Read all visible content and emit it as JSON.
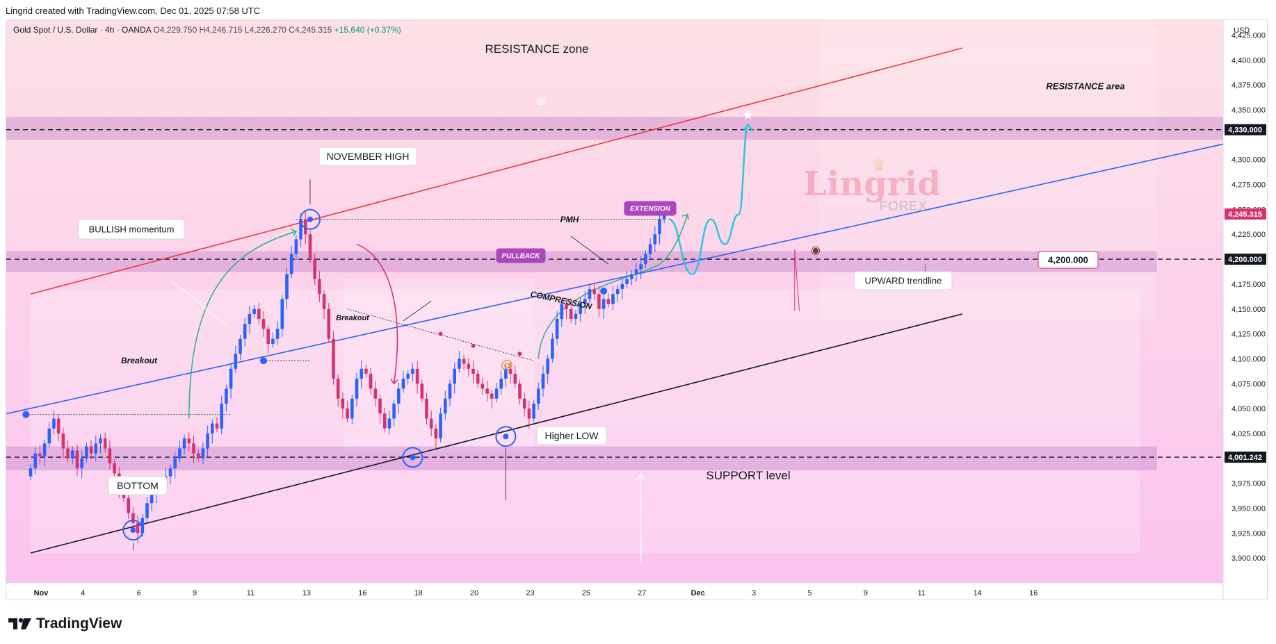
{
  "caption": "Lingrid created with TradingView.com, Dec 01, 2025 07:58 UTC",
  "symbol": {
    "name": "Gold Spot / U.S. Dollar · 4h · OANDA",
    "open": "O4,229.750",
    "high": "H4,246.715",
    "low": "L4,226.270",
    "close": "C4,245.315",
    "change": "+15.640 (+0.37%)"
  },
  "brand": {
    "name": "TradingView"
  },
  "colors": {
    "up": "#089981",
    "down": "#d6336c",
    "candle_body": "#2962ff",
    "resistance_line": "#f0383d",
    "trendline": "#2962ff",
    "support_line": "#131722",
    "projection": "#21c7e0",
    "zone": "#c887cf",
    "badge_purple": "#ab47bc"
  },
  "chart_data": {
    "type": "candlestick",
    "currency": "USD",
    "ylim": [
      3875,
      4440
    ],
    "y_ticks": [
      "3,900.000",
      "3,925.000",
      "3,950.000",
      "3,975.000",
      "4,025.000",
      "4,050.000",
      "4,075.000",
      "4,100.000",
      "4,125.000",
      "4,150.000",
      "4,175.000",
      "4,225.000",
      "4,250.000",
      "4,275.000",
      "4,300.000",
      "4,350.000",
      "4,375.000",
      "4,400.000",
      "4,425.000"
    ],
    "y_tick_values": [
      3900,
      3925,
      3950,
      3975,
      4025,
      4050,
      4075,
      4100,
      4125,
      4150,
      4175,
      4225,
      4250,
      4275,
      4300,
      4350,
      4375,
      4400,
      4425
    ],
    "price_labels": [
      {
        "text": "4,330.000",
        "value": 4330,
        "style": "dark"
      },
      {
        "text": "4,245.315",
        "value": 4245.315,
        "style": "current"
      },
      {
        "text": "4,200.000",
        "value": 4200,
        "style": "dark"
      },
      {
        "text": "4,001.242",
        "value": 4001.242,
        "style": "dark"
      }
    ],
    "x_ticks": [
      {
        "label": "Nov",
        "bar": 0
      },
      {
        "label": "4",
        "bar": 9
      },
      {
        "label": "6",
        "bar": 21
      },
      {
        "label": "9",
        "bar": 33
      },
      {
        "label": "11",
        "bar": 45
      },
      {
        "label": "13",
        "bar": 57
      },
      {
        "label": "16",
        "bar": 69
      },
      {
        "label": "18",
        "bar": 81
      },
      {
        "label": "20",
        "bar": 93
      },
      {
        "label": "23",
        "bar": 105
      },
      {
        "label": "25",
        "bar": 117
      },
      {
        "label": "27",
        "bar": 129
      },
      {
        "label": "Dec",
        "bar": 141
      },
      {
        "label": "3",
        "bar": 153
      },
      {
        "label": "5",
        "bar": 165
      },
      {
        "label": "9",
        "bar": 177
      },
      {
        "label": "11",
        "bar": 189
      },
      {
        "label": "14",
        "bar": 201
      },
      {
        "label": "16",
        "bar": 213
      }
    ],
    "closes": [
      3990,
      4005,
      4002,
      4015,
      4030,
      4040,
      4025,
      4010,
      4000,
      4008,
      3990,
      4000,
      4012,
      4005,
      4015,
      4020,
      4010,
      3995,
      3985,
      3970,
      3960,
      3945,
      3935,
      3925,
      3940,
      3955,
      3965,
      3975,
      3970,
      3982,
      3990,
      4000,
      4010,
      4020,
      4015,
      4005,
      4000,
      4010,
      4025,
      4035,
      4030,
      4055,
      4070,
      4090,
      4105,
      4120,
      4135,
      4145,
      4150,
      4140,
      4130,
      4115,
      4120,
      4130,
      4160,
      4185,
      4205,
      4220,
      4240,
      4225,
      4200,
      4180,
      4165,
      4150,
      4120,
      4080,
      4060,
      4050,
      4040,
      4060,
      4080,
      4090,
      4085,
      4070,
      4060,
      4045,
      4030,
      4040,
      4055,
      4070,
      4080,
      4085,
      4090,
      4075,
      4060,
      4040,
      4030,
      4020,
      4045,
      4060,
      4075,
      4090,
      4100,
      4095,
      4090,
      4085,
      4075,
      4070,
      4065,
      4060,
      4070,
      4080,
      4090,
      4085,
      4075,
      4060,
      4050,
      4040,
      4055,
      4070,
      4085,
      4100,
      4120,
      4140,
      4155,
      4150,
      4140,
      4145,
      4155,
      4160,
      4170,
      4165,
      4150,
      4160,
      4155,
      4165,
      4170,
      4175,
      4180,
      4185,
      4190,
      4195,
      4205,
      4215,
      4225,
      4240,
      4245.315
    ],
    "levels": [
      4330,
      4200,
      4001.242
    ],
    "zones": [
      [
        4320,
        4343
      ],
      [
        4187,
        4208
      ],
      [
        3988,
        4012
      ]
    ],
    "resistance_line": {
      "from": [
        0,
        4165
      ],
      "to": [
        200,
        4412
      ]
    },
    "trendline": {
      "from": [
        -6,
        4044
      ],
      "to": [
        213,
        4271
      ]
    },
    "support_line": {
      "from": [
        0,
        3905
      ],
      "to": [
        200,
        4145
      ]
    },
    "pmh": 4240,
    "projection_path": [
      [
        137,
        4240
      ],
      [
        142,
        4185
      ],
      [
        146,
        4240
      ],
      [
        149,
        4215
      ],
      [
        152,
        4245
      ],
      [
        154,
        4335
      ]
    ],
    "annotations": {
      "resistance_zone": "RESISTANCE zone",
      "resistance_area": "RESISTANCE area",
      "november_high": "NOVEMBER HIGH",
      "pmh": "PMH",
      "bullish_momentum": "BULLISH momentum",
      "breakout_1": "Breakout",
      "breakout_2": "Breakout",
      "pullback": "PULLBACK",
      "compression": "COMPRESSION",
      "extension": "EXTENSION",
      "upward_trendline": "UPWARD trendline",
      "target_value": "4,200.000",
      "higher_low": "Higher LOW",
      "support_level": "SUPPORT level",
      "bottom": "BOTTOM",
      "watermark_main": "Lingrid",
      "watermark_sub": "FOREX"
    }
  }
}
